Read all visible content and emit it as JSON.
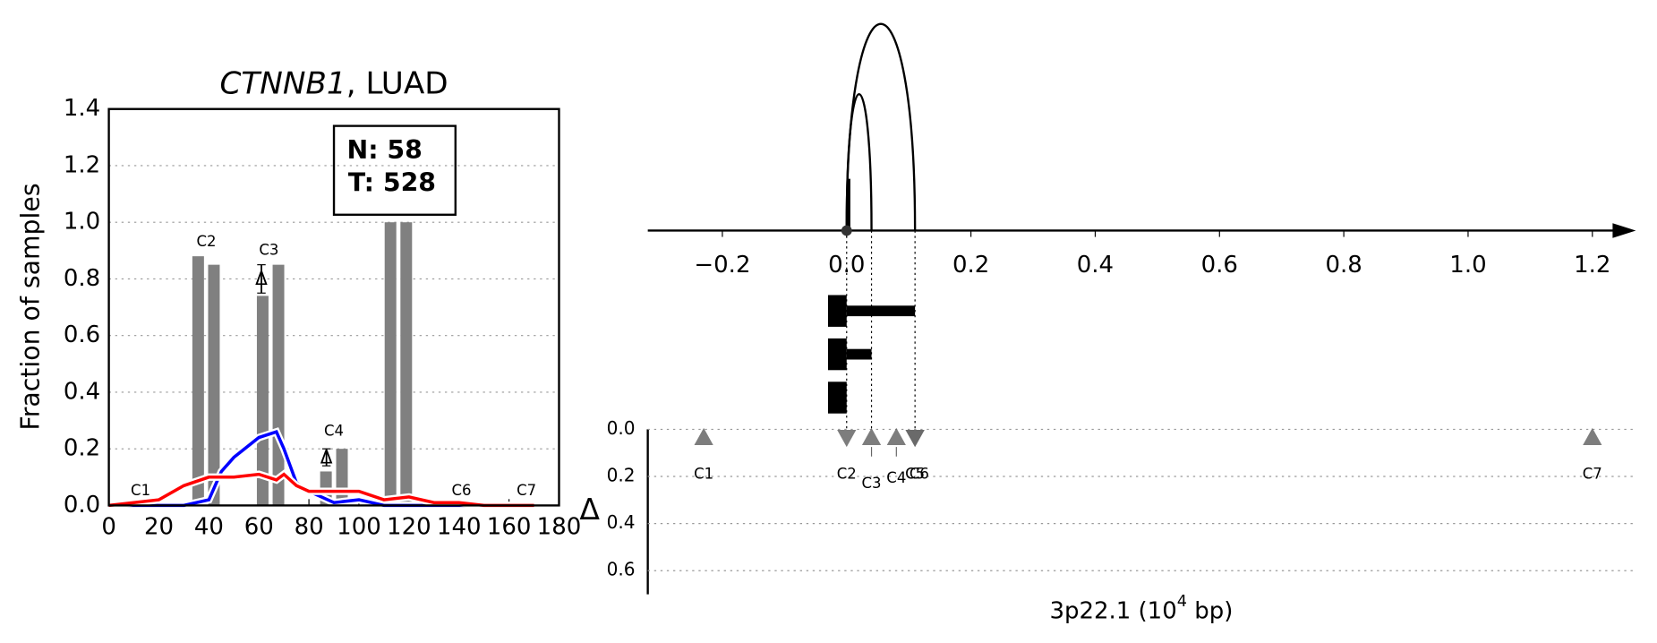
{
  "chart_data": [
    {
      "type": "bar",
      "title_parts": [
        "CTNNB1",
        ", LUAD"
      ],
      "ylabel": "Fraction of samples",
      "xlim": [
        0,
        180
      ],
      "ylim": [
        0,
        1.4
      ],
      "xticks": [
        0,
        20,
        40,
        60,
        80,
        100,
        120,
        140,
        160,
        180
      ],
      "yticks": [
        {
          "value": 0,
          "label": "0.0"
        },
        {
          "value": 0.2,
          "label": "0.2"
        },
        {
          "value": 0.4,
          "label": "0.4"
        },
        {
          "value": 0.6,
          "label": "0.6"
        },
        {
          "value": 0.8,
          "label": "0.8"
        },
        {
          "value": 1.0,
          "label": "1.0"
        },
        {
          "value": 1.2,
          "label": "1.2"
        },
        {
          "value": 1.4,
          "label": "1.4"
        }
      ],
      "grid": true,
      "counts": [
        "N: 58",
        "T: 528"
      ],
      "bars": {
        "color": "#808080",
        "x": [
          35.5,
          41.8,
          61.3,
          67.6,
          86.6,
          93,
          112.4,
          118.7
        ],
        "values": [
          0.88,
          0.85,
          0.74,
          0.85,
          0.12,
          0.2,
          1.0,
          1.0
        ]
      },
      "x": [
        0,
        10,
        20,
        30,
        40,
        45,
        50,
        60,
        67,
        70,
        75,
        80,
        90,
        100,
        110,
        120,
        130,
        140,
        150,
        160,
        170
      ],
      "lines": [
        {
          "color": "#0000ff",
          "values": [
            0,
            0,
            0,
            0,
            0.02,
            0.12,
            0.17,
            0.24,
            0.26,
            0.2,
            0.08,
            0.05,
            0.01,
            0.02,
            0,
            0,
            0,
            0,
            0,
            0,
            0
          ]
        },
        {
          "color": "#ff0000",
          "values": [
            0,
            0.01,
            0.02,
            0.07,
            0.1,
            0.1,
            0.1,
            0.11,
            0.09,
            0.11,
            0.07,
            0.05,
            0.05,
            0.05,
            0.02,
            0.03,
            0.01,
            0.01,
            0,
            0,
            0
          ]
        }
      ],
      "annotations": [
        {
          "text": "C1",
          "x": 12.7,
          "y": 0.05
        },
        {
          "text": "C2",
          "x": 39,
          "y": 0.93
        },
        {
          "text": "C3",
          "x": 64,
          "y": 0.9
        },
        {
          "text": "C4",
          "x": 90,
          "y": 0.26
        },
        {
          "text": "C6",
          "x": 141,
          "y": 0.05
        },
        {
          "text": "C7",
          "x": 167,
          "y": 0.05
        }
      ],
      "deltas": {
        "label": "Δ",
        "x": [
          61,
          87
        ],
        "values": [
          0.8,
          0.17
        ],
        "errors": [
          0.05,
          0.03
        ]
      }
    },
    {
      "type": "arc",
      "xlim": [
        -0.32,
        1.27
      ],
      "xticks": [
        {
          "value": -0.2,
          "label": "−0.2"
        },
        {
          "value": 0,
          "label": "0.0"
        },
        {
          "value": 0.2,
          "label": "0.2"
        },
        {
          "value": 0.4,
          "label": "0.4"
        },
        {
          "value": 0.6,
          "label": "0.6"
        },
        {
          "value": 0.8,
          "label": "0.8"
        },
        {
          "value": 1.0,
          "label": "1.0"
        },
        {
          "value": 1.2,
          "label": "1.2"
        }
      ],
      "stem": {
        "x": 0,
        "height": 0.25
      },
      "arcs": [
        {
          "start": 0,
          "end": 0.04,
          "height": 0.66
        },
        {
          "start": 0,
          "end": 0.11,
          "height": 1.0
        }
      ],
      "rows": [
        {
          "block": [
            -0.03,
            0
          ],
          "tail": 0.11
        },
        {
          "block": [
            -0.03,
            0
          ],
          "tail": 0.04
        },
        {
          "block": [
            -0.03,
            0
          ],
          "tail": null
        }
      ],
      "guides": [
        0,
        0.04,
        0.11
      ],
      "markers": {
        "color": "#666666",
        "labels": [
          "C1",
          "C2",
          "C3",
          "C4",
          "C5",
          "C6",
          "C7"
        ],
        "x": [
          -0.23,
          0,
          0.04,
          0.08,
          0.11,
          0.11,
          1.2
        ],
        "values": [
          0.03,
          0.03,
          0.03,
          0.03,
          0.03,
          0.03,
          0.03
        ],
        "direction": [
          "up",
          "down",
          "up",
          "up",
          "down",
          "down",
          "up"
        ]
      },
      "ylabel": "Δ",
      "ylim": [
        0,
        0.7
      ],
      "yticks": [
        {
          "value": 0,
          "label": "0.0"
        },
        {
          "value": 0.2,
          "label": "0.2"
        },
        {
          "value": 0.4,
          "label": "0.4"
        },
        {
          "value": 0.6,
          "label": "0.6"
        }
      ],
      "grid": true,
      "xlabel_parts": [
        "3p22.1 (10",
        "4",
        " bp)"
      ]
    }
  ]
}
